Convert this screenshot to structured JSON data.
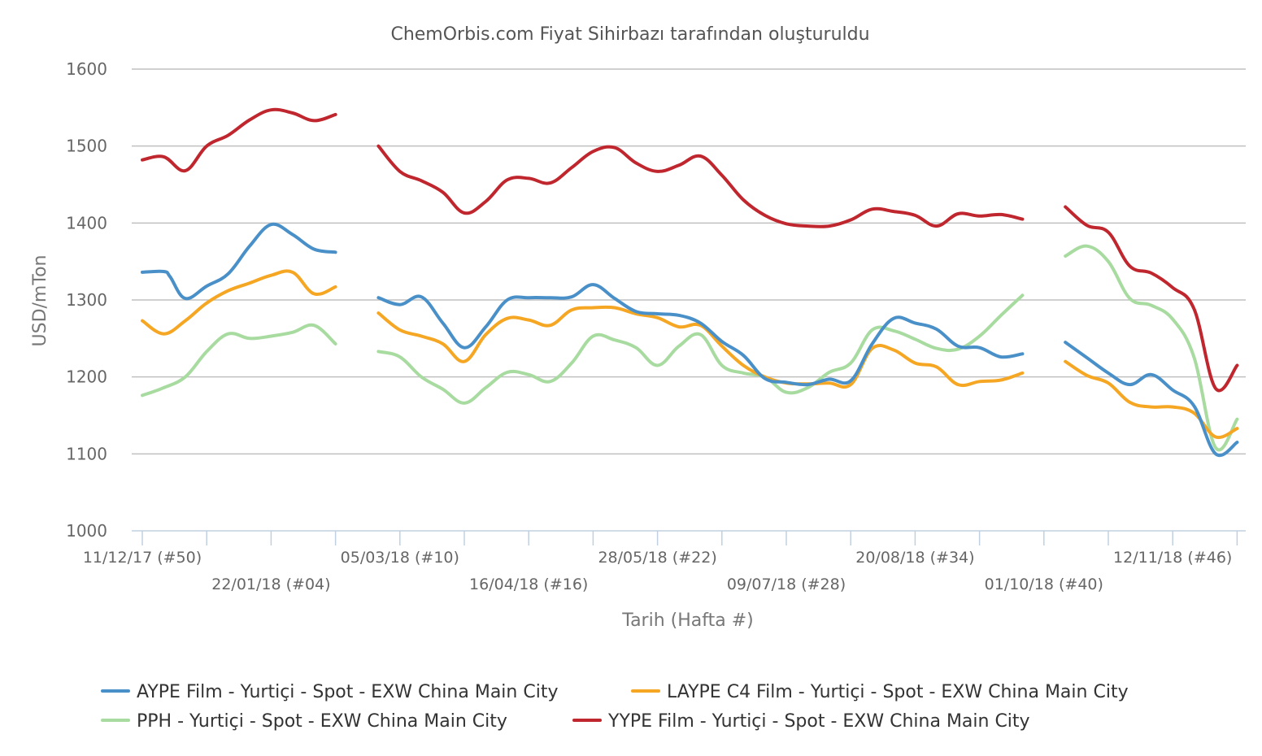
{
  "chart_data": {
    "type": "line",
    "title": "ChemOrbis.com Fiyat Sihirbazı tarafından oluşturuldu",
    "xlabel": "Tarih (Hafta #)",
    "ylabel": "USD/mTon",
    "ylim": [
      1000,
      1600
    ],
    "yticks": [
      1000,
      1100,
      1200,
      1300,
      1400,
      1500,
      1600
    ],
    "grid": true,
    "legend_position": "bottom",
    "x_tick_labels": [
      {
        "week": 0,
        "label": "11/12/17 (#50)"
      },
      {
        "week": 6,
        "label": "22/01/18 (#04)"
      },
      {
        "week": 12,
        "label": "05/03/18 (#10)"
      },
      {
        "week": 18,
        "label": "16/04/18 (#16)"
      },
      {
        "week": 24,
        "label": "28/05/18 (#22)"
      },
      {
        "week": 30,
        "label": "09/07/18 (#28)"
      },
      {
        "week": 36,
        "label": "20/08/18 (#34)"
      },
      {
        "week": 42,
        "label": "01/10/18 (#40)"
      },
      {
        "week": 48,
        "label": "12/11/18 (#46)"
      }
    ],
    "x_minor_ticks": [
      3,
      9,
      15,
      21,
      27,
      33,
      39,
      45,
      51
    ],
    "x_range": [
      -0.5,
      51.5
    ],
    "series": [
      {
        "name": "AYPE Film - Yurtiçi - Spot - EXW China Main City",
        "color": "#4a90c8",
        "segments": [
          [
            [
              0,
              1336
            ],
            [
              1,
              1337
            ],
            [
              1.3,
              1330
            ],
            [
              2,
              1302
            ],
            [
              3,
              1318
            ],
            [
              4,
              1334
            ],
            [
              5,
              1370
            ],
            [
              6,
              1398
            ],
            [
              7,
              1385
            ],
            [
              8,
              1366
            ],
            [
              9,
              1362
            ]
          ],
          [
            [
              11,
              1303
            ],
            [
              12,
              1294
            ],
            [
              13,
              1304
            ],
            [
              14,
              1270
            ],
            [
              15,
              1238
            ],
            [
              16,
              1265
            ],
            [
              17,
              1300
            ],
            [
              18,
              1303
            ],
            [
              19,
              1303
            ],
            [
              20,
              1304
            ],
            [
              21,
              1320
            ],
            [
              22,
              1302
            ],
            [
              23,
              1285
            ],
            [
              24,
              1282
            ],
            [
              25,
              1280
            ],
            [
              26,
              1270
            ],
            [
              27,
              1246
            ],
            [
              28,
              1228
            ],
            [
              29,
              1198
            ],
            [
              30,
              1193
            ],
            [
              31,
              1190
            ],
            [
              32,
              1197
            ],
            [
              33,
              1195
            ],
            [
              34,
              1243
            ],
            [
              35,
              1276
            ],
            [
              36,
              1270
            ],
            [
              37,
              1262
            ],
            [
              38,
              1240
            ],
            [
              39,
              1238
            ],
            [
              40,
              1226
            ],
            [
              41,
              1230
            ]
          ],
          [
            [
              43,
              1245
            ],
            [
              44,
              1225
            ],
            [
              45,
              1205
            ],
            [
              46,
              1190
            ],
            [
              47,
              1203
            ],
            [
              48,
              1183
            ],
            [
              49,
              1162
            ],
            [
              50,
              1100
            ],
            [
              51,
              1115
            ]
          ]
        ]
      },
      {
        "name": "LAYPE C4 Film - Yurtiçi - Spot - EXW China Main City",
        "color": "#f5a623",
        "segments": [
          [
            [
              0,
              1273
            ],
            [
              1,
              1256
            ],
            [
              2,
              1273
            ],
            [
              3,
              1296
            ],
            [
              4,
              1312
            ],
            [
              5,
              1322
            ],
            [
              6,
              1332
            ],
            [
              7,
              1336
            ],
            [
              8,
              1308
            ],
            [
              9,
              1317
            ]
          ],
          [
            [
              11,
              1283
            ],
            [
              12,
              1261
            ],
            [
              13,
              1253
            ],
            [
              14,
              1243
            ],
            [
              15,
              1220
            ],
            [
              16,
              1255
            ],
            [
              17,
              1276
            ],
            [
              18,
              1274
            ],
            [
              19,
              1267
            ],
            [
              20,
              1287
            ],
            [
              21,
              1290
            ],
            [
              22,
              1290
            ],
            [
              23,
              1282
            ],
            [
              24,
              1277
            ],
            [
              25,
              1265
            ],
            [
              26,
              1267
            ],
            [
              27,
              1240
            ],
            [
              28,
              1215
            ],
            [
              29,
              1200
            ],
            [
              30,
              1192
            ],
            [
              31,
              1191
            ],
            [
              32,
              1192
            ],
            [
              33,
              1190
            ],
            [
              34,
              1237
            ],
            [
              35,
              1235
            ],
            [
              36,
              1218
            ],
            [
              37,
              1213
            ],
            [
              38,
              1190
            ],
            [
              39,
              1194
            ],
            [
              40,
              1196
            ],
            [
              41,
              1205
            ]
          ],
          [
            [
              43,
              1220
            ],
            [
              44,
              1202
            ],
            [
              45,
              1192
            ],
            [
              46,
              1167
            ],
            [
              47,
              1161
            ],
            [
              48,
              1161
            ],
            [
              49,
              1153
            ],
            [
              50,
              1122
            ],
            [
              51,
              1133
            ]
          ]
        ]
      },
      {
        "name": "PPH - Yurtiçi - Spot - EXW China Main City",
        "color": "#a8dba0",
        "segments": [
          [
            [
              0,
              1176
            ],
            [
              1,
              1186
            ],
            [
              2,
              1200
            ],
            [
              3,
              1233
            ],
            [
              4,
              1256
            ],
            [
              5,
              1250
            ],
            [
              6,
              1253
            ],
            [
              7,
              1258
            ],
            [
              8,
              1267
            ],
            [
              9,
              1243
            ]
          ],
          [
            [
              11,
              1233
            ],
            [
              12,
              1226
            ],
            [
              13,
              1200
            ],
            [
              14,
              1184
            ],
            [
              15,
              1166
            ],
            [
              16,
              1186
            ],
            [
              17,
              1206
            ],
            [
              18,
              1203
            ],
            [
              19,
              1194
            ],
            [
              20,
              1218
            ],
            [
              21,
              1253
            ],
            [
              22,
              1248
            ],
            [
              23,
              1238
            ],
            [
              24,
              1215
            ],
            [
              25,
              1240
            ],
            [
              26,
              1255
            ],
            [
              27,
              1215
            ],
            [
              28,
              1205
            ],
            [
              29,
              1200
            ],
            [
              30,
              1180
            ],
            [
              31,
              1186
            ],
            [
              32,
              1206
            ],
            [
              33,
              1218
            ],
            [
              34,
              1261
            ],
            [
              35,
              1260
            ],
            [
              36,
              1249
            ],
            [
              37,
              1237
            ],
            [
              38,
              1236
            ],
            [
              39,
              1253
            ],
            [
              40,
              1280
            ],
            [
              41,
              1306
            ]
          ],
          [
            [
              43,
              1357
            ],
            [
              44,
              1370
            ],
            [
              45,
              1350
            ],
            [
              46,
              1302
            ],
            [
              47,
              1293
            ],
            [
              48,
              1275
            ],
            [
              49,
              1225
            ],
            [
              50,
              1108
            ],
            [
              51,
              1145
            ]
          ]
        ]
      },
      {
        "name": "YYPE Film - Yurtiçi - Spot - EXW China Main City",
        "color": "#c0262d",
        "segments": [
          [
            [
              0,
              1482
            ],
            [
              1,
              1486
            ],
            [
              2,
              1468
            ],
            [
              3,
              1500
            ],
            [
              4,
              1514
            ],
            [
              5,
              1534
            ],
            [
              6,
              1547
            ],
            [
              7,
              1543
            ],
            [
              8,
              1533
            ],
            [
              9,
              1541
            ]
          ],
          [
            [
              11,
              1500
            ],
            [
              12,
              1467
            ],
            [
              13,
              1455
            ],
            [
              14,
              1440
            ],
            [
              15,
              1413
            ],
            [
              16,
              1428
            ],
            [
              17,
              1456
            ],
            [
              18,
              1458
            ],
            [
              19,
              1452
            ],
            [
              20,
              1472
            ],
            [
              21,
              1493
            ],
            [
              22,
              1498
            ],
            [
              23,
              1478
            ],
            [
              24,
              1467
            ],
            [
              25,
              1475
            ],
            [
              26,
              1487
            ],
            [
              27,
              1462
            ],
            [
              28,
              1430
            ],
            [
              29,
              1410
            ],
            [
              30,
              1399
            ],
            [
              31,
              1396
            ],
            [
              32,
              1396
            ],
            [
              33,
              1404
            ],
            [
              34,
              1418
            ],
            [
              35,
              1415
            ],
            [
              36,
              1410
            ],
            [
              37,
              1396
            ],
            [
              38,
              1412
            ],
            [
              39,
              1409
            ],
            [
              40,
              1411
            ],
            [
              41,
              1405
            ]
          ],
          [
            [
              43,
              1421
            ],
            [
              44,
              1397
            ],
            [
              45,
              1388
            ],
            [
              46,
              1344
            ],
            [
              47,
              1335
            ],
            [
              48,
              1316
            ],
            [
              49,
              1288
            ],
            [
              50,
              1185
            ],
            [
              51,
              1215
            ]
          ]
        ]
      }
    ]
  }
}
